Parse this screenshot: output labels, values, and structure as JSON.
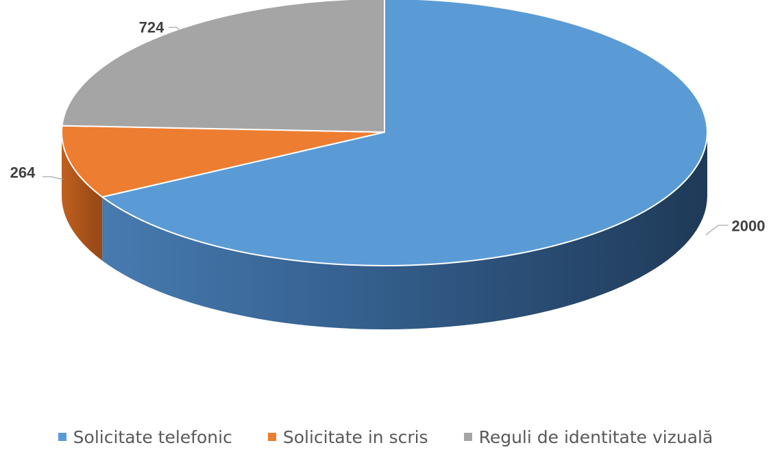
{
  "chart_data": {
    "type": "pie",
    "three_d": true,
    "title": "",
    "categories": [
      "Solicitate telefonic",
      "Solicitate in scris",
      "Reguli de identitate vizuală"
    ],
    "values": [
      2000,
      264,
      724
    ],
    "data_labels": [
      "2000",
      "264",
      "724"
    ],
    "colors": [
      "#5b9bd5",
      "#ed7d31",
      "#a5a5a5"
    ],
    "legend_position": "bottom"
  }
}
